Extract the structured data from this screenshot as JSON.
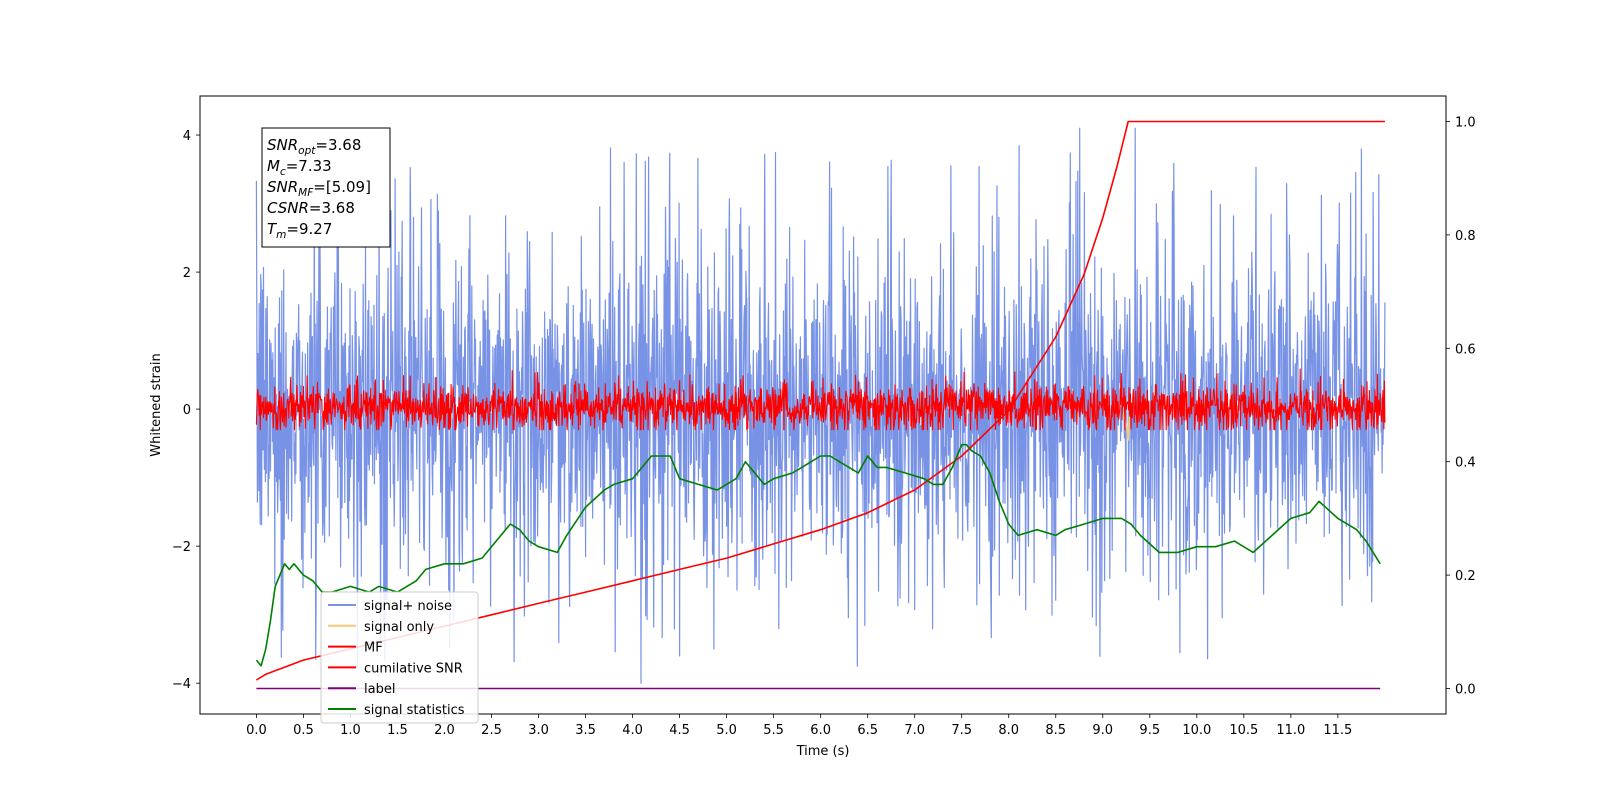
{
  "chart_data": {
    "type": "line",
    "xlabel": "Time (s)",
    "ylabel": "Whitened strain",
    "xlim": [
      -0.6,
      12.65
    ],
    "ylim": [
      -4.45,
      4.57
    ],
    "y2lim": [
      -0.045,
      1.045
    ],
    "x_ticks": [
      0.0,
      0.5,
      1.0,
      1.5,
      2.0,
      2.5,
      3.0,
      3.5,
      4.0,
      4.5,
      5.0,
      5.5,
      6.0,
      6.5,
      7.0,
      7.5,
      8.0,
      8.5,
      9.0,
      9.5,
      10.0,
      10.5,
      11.0,
      11.5
    ],
    "x_tick_labels": [
      "0.0",
      "0.5",
      "1.0",
      "1.5",
      "2.0",
      "2.5",
      "3.0",
      "3.5",
      "4.0",
      "4.5",
      "5.0",
      "5.5",
      "6.0",
      "6.5",
      "7.0",
      "7.5",
      "8.0",
      "8.5",
      "9.0",
      "9.5",
      "10.0",
      "10.5",
      "11.0",
      "11.5"
    ],
    "y_ticks": [
      -4,
      -2,
      0,
      2,
      4
    ],
    "y_tick_labels": [
      "−4",
      "−2",
      "0",
      "2",
      "4"
    ],
    "y2_ticks": [
      0.0,
      0.2,
      0.4,
      0.6,
      0.8,
      1.0
    ],
    "y2_tick_labels": [
      "0.0",
      "0.2",
      "0.4",
      "0.6",
      "0.8",
      "1.0"
    ],
    "grid": false,
    "legend_position": "bottom-left",
    "info_box": [
      {
        "main": "SNR",
        "sub": "opt",
        "value": "=3.68"
      },
      {
        "main": "M",
        "sub": "c",
        "value": "=7.33"
      },
      {
        "main": "SNR",
        "sub": "MF",
        "value": "=[5.09]"
      },
      {
        "main": "CSNR",
        "sub": "",
        "value": "=3.68"
      },
      {
        "main": "T",
        "sub": "m",
        "value": "=9.27"
      }
    ],
    "series": [
      {
        "name": "signal+ noise",
        "color": "#7892e6",
        "axis": "left",
        "kind": "noise",
        "x_range": [
          0.0,
          12.0
        ],
        "typical_range": [
          -2.0,
          2.0
        ],
        "peak_range": [
          -4.0,
          4.1
        ]
      },
      {
        "name": "signal only",
        "color": "#f5c97a",
        "axis": "left",
        "x": [
          9.1,
          9.2,
          9.25,
          9.27,
          9.29,
          9.35
        ],
        "y": [
          0.0,
          0.05,
          -0.25,
          -0.45,
          0.1,
          0.0
        ]
      },
      {
        "name": "MF",
        "color": "#ff0000",
        "axis": "left",
        "kind": "noise",
        "x_range": [
          0.0,
          12.0
        ],
        "typical_range": [
          -0.25,
          0.3
        ],
        "peak_range": [
          -0.3,
          1.0
        ]
      },
      {
        "name": "cumilative SNR",
        "color": "#ff0000",
        "axis": "right",
        "x": [
          0.0,
          0.1,
          0.5,
          1.0,
          1.5,
          2.0,
          2.5,
          3.0,
          3.5,
          4.0,
          4.5,
          5.0,
          5.5,
          6.0,
          6.5,
          7.0,
          7.5,
          8.0,
          8.5,
          8.8,
          9.0,
          9.15,
          9.27,
          12.0
        ],
        "y": [
          0.015,
          0.025,
          0.05,
          0.07,
          0.09,
          0.11,
          0.13,
          0.15,
          0.17,
          0.19,
          0.21,
          0.23,
          0.255,
          0.28,
          0.31,
          0.35,
          0.41,
          0.49,
          0.62,
          0.73,
          0.83,
          0.92,
          1.0,
          1.0
        ]
      },
      {
        "name": "label",
        "color": "#800080",
        "axis": "right",
        "x": [
          0.0,
          11.95
        ],
        "y": [
          0.0,
          0.0
        ]
      },
      {
        "name": "signal statistics",
        "color": "#008000",
        "axis": "right",
        "x": [
          0.0,
          0.05,
          0.1,
          0.15,
          0.2,
          0.3,
          0.35,
          0.4,
          0.5,
          0.6,
          0.7,
          0.8,
          1.0,
          1.2,
          1.3,
          1.5,
          1.7,
          1.8,
          2.0,
          2.2,
          2.4,
          2.6,
          2.7,
          2.8,
          2.9,
          3.0,
          3.2,
          3.3,
          3.5,
          3.7,
          3.8,
          4.0,
          4.1,
          4.2,
          4.4,
          4.5,
          4.7,
          4.9,
          5.1,
          5.2,
          5.4,
          5.5,
          5.7,
          5.9,
          6.0,
          6.1,
          6.2,
          6.4,
          6.5,
          6.6,
          6.7,
          6.9,
          7.1,
          7.2,
          7.3,
          7.4,
          7.5,
          7.55,
          7.6,
          7.7,
          7.8,
          7.9,
          8.0,
          8.1,
          8.3,
          8.5,
          8.6,
          8.8,
          9.0,
          9.2,
          9.3,
          9.4,
          9.6,
          9.8,
          10.0,
          10.2,
          10.4,
          10.6,
          10.8,
          11.0,
          11.2,
          11.3,
          11.5,
          11.7,
          11.8,
          11.95
        ],
        "y": [
          0.05,
          0.04,
          0.07,
          0.12,
          0.18,
          0.22,
          0.21,
          0.22,
          0.2,
          0.19,
          0.17,
          0.17,
          0.18,
          0.17,
          0.18,
          0.17,
          0.19,
          0.21,
          0.22,
          0.22,
          0.23,
          0.27,
          0.29,
          0.28,
          0.26,
          0.25,
          0.24,
          0.27,
          0.32,
          0.35,
          0.36,
          0.37,
          0.39,
          0.41,
          0.41,
          0.37,
          0.36,
          0.35,
          0.37,
          0.4,
          0.36,
          0.37,
          0.38,
          0.4,
          0.41,
          0.41,
          0.4,
          0.38,
          0.41,
          0.39,
          0.39,
          0.38,
          0.37,
          0.36,
          0.36,
          0.39,
          0.43,
          0.43,
          0.42,
          0.41,
          0.38,
          0.33,
          0.29,
          0.27,
          0.28,
          0.27,
          0.28,
          0.29,
          0.3,
          0.3,
          0.29,
          0.27,
          0.24,
          0.24,
          0.25,
          0.25,
          0.26,
          0.24,
          0.27,
          0.3,
          0.31,
          0.33,
          0.3,
          0.28,
          0.26,
          0.22
        ]
      }
    ]
  }
}
